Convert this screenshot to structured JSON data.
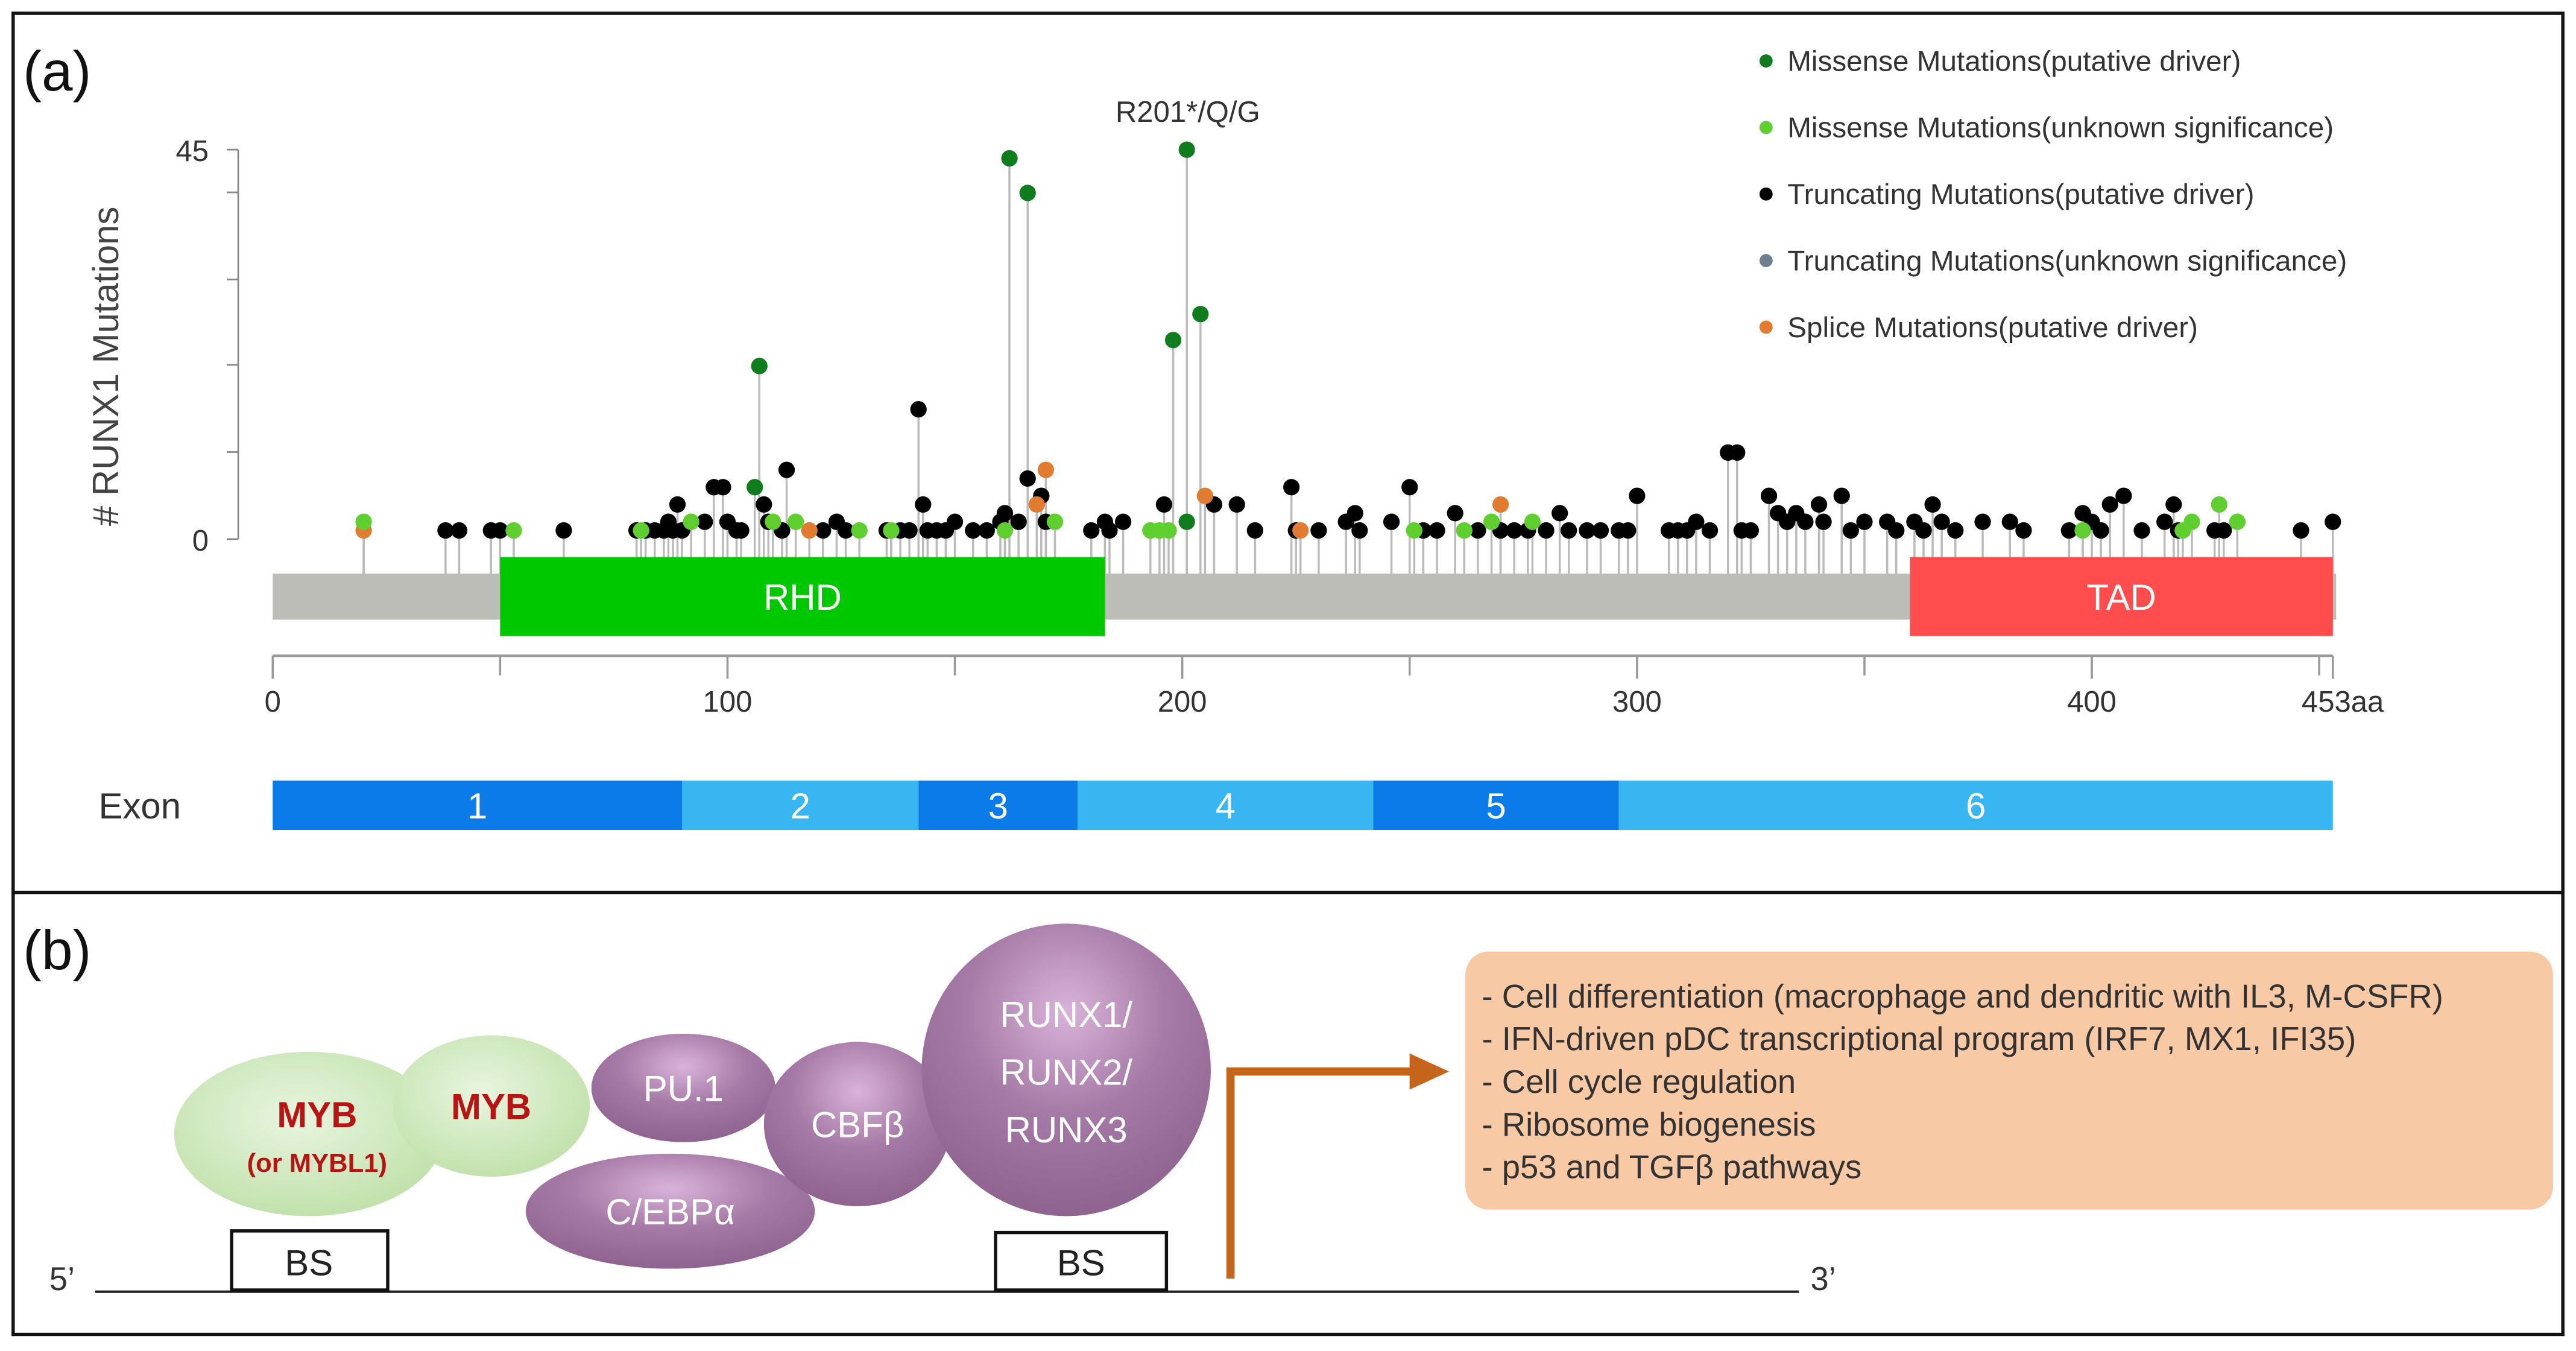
{
  "panel_a": {
    "label": "(a)",
    "annotation": "R201*/Q/G",
    "y_axis_label": "# RUNX1 Mutations",
    "y_ticks": [
      "45",
      "0"
    ],
    "x_tick_labels": [
      "0",
      "100",
      "200",
      "300",
      "400",
      "453aa"
    ],
    "exon_label": "Exon",
    "legend": [
      {
        "key": "md",
        "label": "Missense Mutations(putative driver)",
        "color": "#0f7d1e"
      },
      {
        "key": "mu",
        "label": "Missense Mutations(unknown significance)",
        "color": "#5fcf2f"
      },
      {
        "key": "td",
        "label": "Truncating Mutations(putative driver)",
        "color": "#000000"
      },
      {
        "key": "tu",
        "label": "Truncating Mutations(unknown significance)",
        "color": "#708090"
      },
      {
        "key": "sp",
        "label": "Splice Mutations(putative driver)",
        "color": "#e07b30"
      }
    ],
    "domains": [
      {
        "name": "RHD",
        "start": 50,
        "end": 183,
        "color": "#00c800"
      },
      {
        "name": "TAD",
        "start": 360,
        "end": 453,
        "color": "#ff4d4d"
      }
    ],
    "exons": [
      {
        "label": "1",
        "start": 0,
        "end": 90,
        "color": "#0a7be8"
      },
      {
        "label": "2",
        "start": 90,
        "end": 142,
        "color": "#38b6f2"
      },
      {
        "label": "3",
        "start": 142,
        "end": 177,
        "color": "#0a7be8"
      },
      {
        "label": "4",
        "start": 177,
        "end": 242,
        "color": "#38b6f2"
      },
      {
        "label": "5",
        "start": 242,
        "end": 296,
        "color": "#0a7be8"
      },
      {
        "label": "6",
        "start": 296,
        "end": 453,
        "color": "#38b6f2"
      }
    ]
  },
  "chart_data": {
    "type": "scatter",
    "title": "",
    "xlabel": "",
    "ylabel": "# RUNX1 Mutations",
    "xlim": [
      0,
      453
    ],
    "ylim": [
      0,
      45
    ],
    "protein_length": 453,
    "mutations": {
      "md": [
        [
          106,
          6
        ],
        [
          107,
          20
        ],
        [
          162,
          44
        ],
        [
          166,
          40
        ],
        [
          198,
          23
        ],
        [
          201,
          45
        ],
        [
          201,
          2
        ],
        [
          204,
          26
        ]
      ],
      "mu": [
        [
          20,
          2
        ],
        [
          53,
          1
        ],
        [
          81,
          1
        ],
        [
          92,
          2
        ],
        [
          110,
          2
        ],
        [
          115,
          2
        ],
        [
          129,
          1
        ],
        [
          136,
          1
        ],
        [
          161,
          1
        ],
        [
          172,
          2
        ],
        [
          193,
          1
        ],
        [
          195,
          1
        ],
        [
          197,
          1
        ],
        [
          251,
          1
        ],
        [
          262,
          1
        ],
        [
          268,
          2
        ],
        [
          277,
          2
        ],
        [
          398,
          1
        ],
        [
          420,
          1
        ],
        [
          422,
          2
        ],
        [
          428,
          4
        ],
        [
          432,
          2
        ]
      ],
      "sp": [
        [
          20,
          1
        ],
        [
          118,
          1
        ],
        [
          136,
          1
        ],
        [
          168,
          4
        ],
        [
          170,
          8
        ],
        [
          205,
          5
        ],
        [
          226,
          1
        ],
        [
          270,
          4
        ]
      ],
      "td": [
        [
          38,
          1
        ],
        [
          41,
          1
        ],
        [
          48,
          1
        ],
        [
          50,
          1
        ],
        [
          64,
          1
        ],
        [
          80,
          1
        ],
        [
          82,
          1
        ],
        [
          84,
          1
        ],
        [
          86,
          1
        ],
        [
          87,
          2
        ],
        [
          88,
          1
        ],
        [
          89,
          4
        ],
        [
          90,
          1
        ],
        [
          95,
          2
        ],
        [
          97,
          6
        ],
        [
          99,
          6
        ],
        [
          100,
          2
        ],
        [
          102,
          1
        ],
        [
          103,
          1
        ],
        [
          108,
          4
        ],
        [
          109,
          2
        ],
        [
          112,
          1
        ],
        [
          113,
          8
        ],
        [
          121,
          1
        ],
        [
          124,
          2
        ],
        [
          126,
          1
        ],
        [
          135,
          1
        ],
        [
          138,
          1
        ],
        [
          140,
          1
        ],
        [
          142,
          15
        ],
        [
          143,
          4
        ],
        [
          144,
          1
        ],
        [
          146,
          1
        ],
        [
          148,
          1
        ],
        [
          150,
          2
        ],
        [
          154,
          1
        ],
        [
          157,
          1
        ],
        [
          160,
          2
        ],
        [
          161,
          3
        ],
        [
          164,
          2
        ],
        [
          166,
          7
        ],
        [
          169,
          5
        ],
        [
          170,
          2
        ],
        [
          180,
          1
        ],
        [
          183,
          2
        ],
        [
          184,
          1
        ],
        [
          187,
          2
        ],
        [
          196,
          4
        ],
        [
          207,
          4
        ],
        [
          212,
          4
        ],
        [
          216,
          1
        ],
        [
          224,
          6
        ],
        [
          225,
          1
        ],
        [
          230,
          1
        ],
        [
          236,
          2
        ],
        [
          238,
          3
        ],
        [
          239,
          1
        ],
        [
          246,
          2
        ],
        [
          250,
          6
        ],
        [
          253,
          1
        ],
        [
          256,
          1
        ],
        [
          260,
          3
        ],
        [
          265,
          1
        ],
        [
          270,
          1
        ],
        [
          273,
          1
        ],
        [
          276,
          1
        ],
        [
          280,
          1
        ],
        [
          283,
          3
        ],
        [
          285,
          1
        ],
        [
          289,
          1
        ],
        [
          292,
          1
        ],
        [
          296,
          1
        ],
        [
          298,
          1
        ],
        [
          300,
          5
        ],
        [
          307,
          1
        ],
        [
          309,
          1
        ],
        [
          311,
          1
        ],
        [
          313,
          2
        ],
        [
          316,
          1
        ],
        [
          320,
          10
        ],
        [
          322,
          10
        ],
        [
          323,
          1
        ],
        [
          325,
          1
        ],
        [
          329,
          5
        ],
        [
          331,
          3
        ],
        [
          333,
          2
        ],
        [
          335,
          3
        ],
        [
          337,
          2
        ],
        [
          340,
          4
        ],
        [
          341,
          2
        ],
        [
          345,
          5
        ],
        [
          347,
          1
        ],
        [
          350,
          2
        ],
        [
          355,
          2
        ],
        [
          357,
          1
        ],
        [
          361,
          2
        ],
        [
          363,
          1
        ],
        [
          365,
          4
        ],
        [
          367,
          2
        ],
        [
          370,
          1
        ],
        [
          376,
          2
        ],
        [
          382,
          2
        ],
        [
          385,
          1
        ],
        [
          395,
          1
        ],
        [
          398,
          3
        ],
        [
          400,
          2
        ],
        [
          402,
          1
        ],
        [
          404,
          4
        ],
        [
          407,
          5
        ],
        [
          411,
          1
        ],
        [
          416,
          2
        ],
        [
          418,
          4
        ],
        [
          419,
          1
        ],
        [
          427,
          1
        ],
        [
          429,
          1
        ],
        [
          446,
          1
        ],
        [
          453,
          2
        ]
      ]
    }
  },
  "panel_b": {
    "label": "(b)",
    "proteins": {
      "myb1": "MYB",
      "myb1_sub": "(or MYBL1)",
      "myb2": "MYB",
      "pu1": "PU.1",
      "cebpa": "C/EBPα",
      "cbfb": "CBFβ",
      "runx_lines": [
        "RUNX1/",
        "RUNX2/",
        "RUNX3"
      ]
    },
    "binding_site": "BS",
    "strand_5": "5’",
    "strand_3": "3’",
    "targets": [
      "- Cell differentiation (macrophage and dendritic with IL3, M-CSFR)",
      "- IFN-driven pDC transcriptional program (IRF7, MX1, IFI35)",
      "- Cell cycle regulation",
      "- Ribosome biogenesis",
      "- p53 and TGFβ pathways"
    ]
  }
}
